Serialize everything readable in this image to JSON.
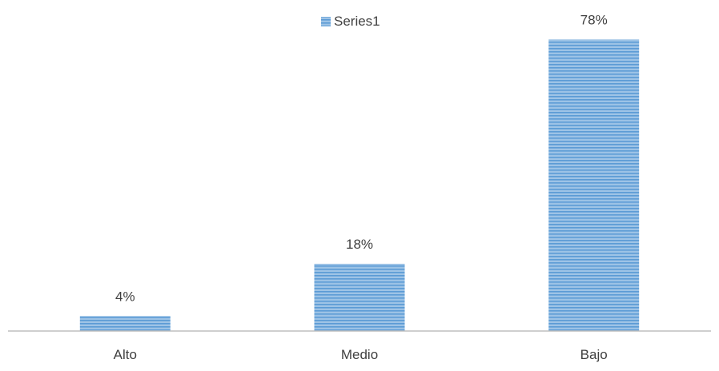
{
  "chart_data": {
    "type": "bar",
    "categories": [
      "Alto",
      "Medio",
      "Bajo"
    ],
    "series": [
      {
        "name": "Series1",
        "values": [
          4,
          18,
          78
        ]
      }
    ],
    "data_labels": [
      "4%",
      "18%",
      "78%"
    ],
    "unit": "%",
    "ylim": [
      0,
      80
    ],
    "grid": false,
    "legend_position": "top-center",
    "colors": {
      "bar_fill": "#9dc3e6",
      "bar_stripe": "#5b9bd5",
      "axis": "#bfbfbf",
      "text": "#404040"
    }
  }
}
